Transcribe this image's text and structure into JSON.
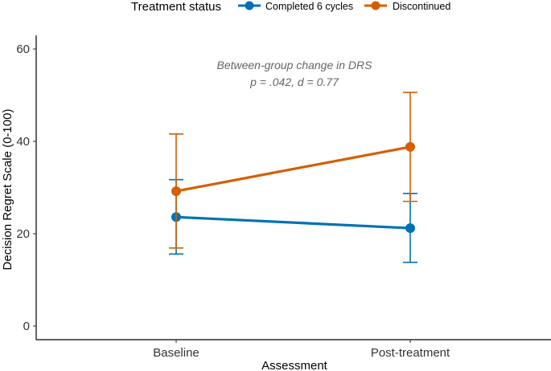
{
  "chart_data": {
    "type": "line",
    "categories": [
      "Baseline",
      "Post-treatment"
    ],
    "xlabel": "Assessment",
    "ylabel": "Decision Regret Scale (0-100)",
    "ylim": [
      0,
      63
    ],
    "yticks": [
      0,
      20,
      40,
      60
    ],
    "grid": false,
    "legend": {
      "title": "Treatment status",
      "position": "top",
      "items": [
        "Completed 6 cycles",
        "Discontinued"
      ]
    },
    "series": [
      {
        "name": "Completed 6 cycles",
        "color": "#0072B2",
        "values": [
          23.6,
          21.2
        ],
        "error_low": [
          15.6,
          13.8
        ],
        "error_high": [
          31.7,
          28.7
        ]
      },
      {
        "name": "Discontinued",
        "color": "#D55E00",
        "values": [
          29.2,
          38.8
        ],
        "error_low": [
          16.9,
          27.0
        ],
        "error_high": [
          41.6,
          50.6
        ]
      }
    ],
    "annotation": {
      "line1": "Between-group change in DRS",
      "line2": "p = .042, d = 0.77"
    }
  }
}
